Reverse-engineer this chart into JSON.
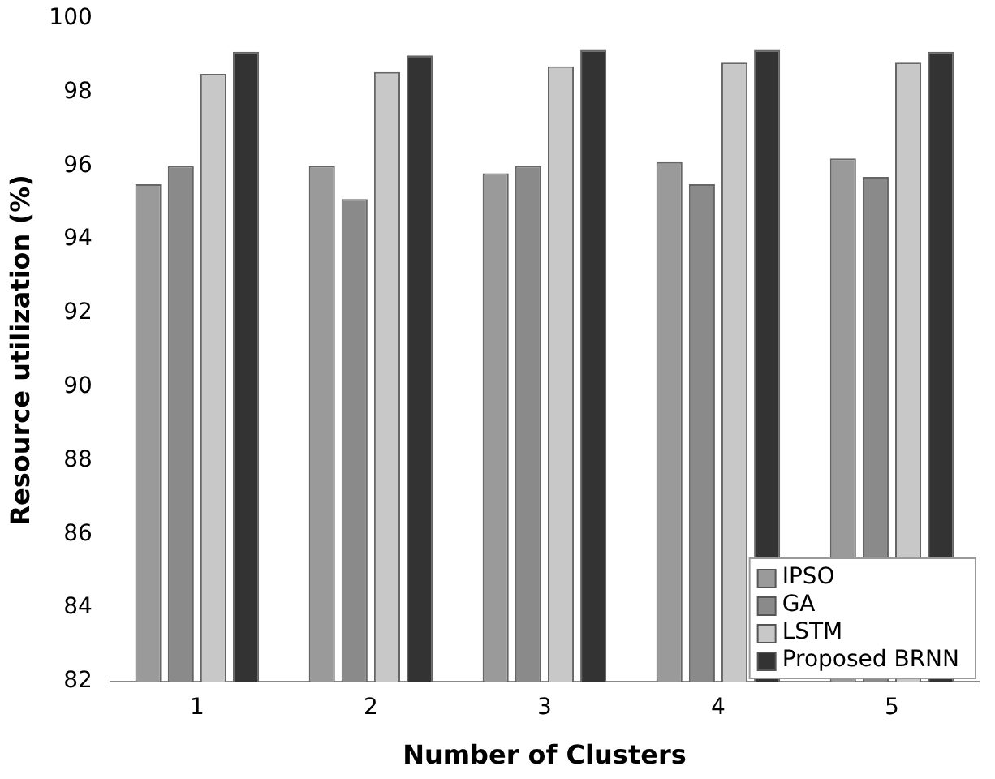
{
  "chart_data": {
    "type": "bar",
    "xlabel": "Number of Clusters",
    "ylabel": "Resource utilization (%)",
    "categories": [
      "1",
      "2",
      "3",
      "4",
      "5"
    ],
    "series": [
      {
        "name": "IPSO",
        "color": "#9a9a9a",
        "values": [
          95.5,
          96.0,
          95.8,
          96.1,
          96.2
        ]
      },
      {
        "name": "GA",
        "color": "#8a8a8a",
        "values": [
          96.0,
          95.1,
          96.0,
          95.5,
          95.7
        ]
      },
      {
        "name": "LSTM",
        "color": "#c8c8c8",
        "values": [
          98.5,
          98.55,
          98.7,
          98.8,
          98.8
        ]
      },
      {
        "name": "Proposed BRNN",
        "color": "#333333",
        "values": [
          99.1,
          99.0,
          99.15,
          99.15,
          99.1
        ]
      }
    ],
    "ylim": [
      82,
      100
    ],
    "yticks": [
      82,
      84,
      86,
      88,
      90,
      92,
      94,
      96,
      98,
      100
    ],
    "grid": false,
    "legend": "bottom right"
  }
}
